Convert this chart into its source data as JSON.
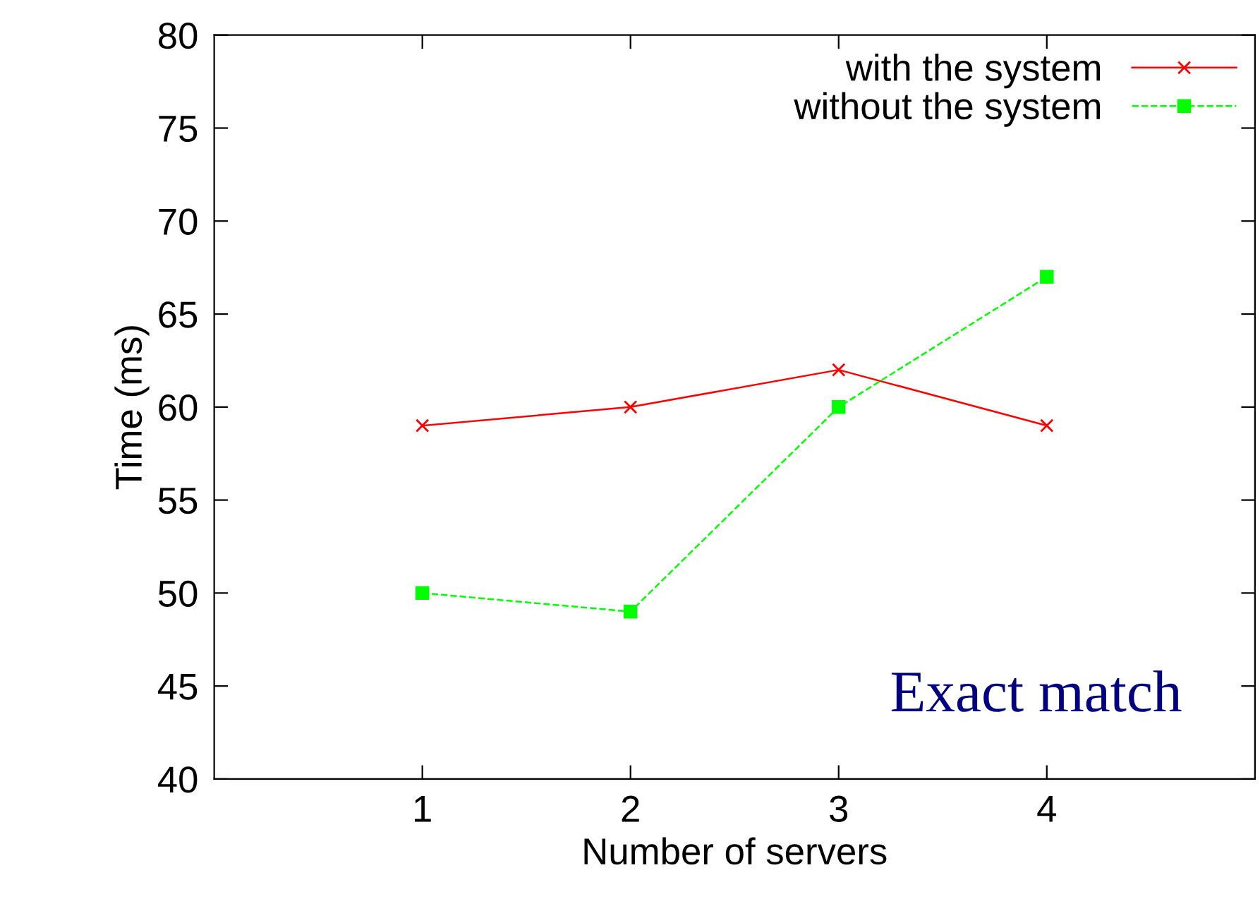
{
  "chart_data": {
    "type": "line",
    "xlabel": "Number of servers",
    "ylabel": "Time (ms)",
    "x": [
      1,
      2,
      3,
      4
    ],
    "xlim": [
      0,
      5
    ],
    "xticks": [
      1,
      2,
      3,
      4
    ],
    "ylim": [
      40,
      80
    ],
    "yticks": [
      40,
      45,
      50,
      55,
      60,
      65,
      70,
      75,
      80
    ],
    "series": [
      {
        "name": "with the system",
        "color": "#ff0000",
        "marker": "cross",
        "line_style": "solid",
        "values": [
          59,
          60,
          62,
          59
        ]
      },
      {
        "name": "without the system",
        "color": "#00ff00",
        "marker": "square",
        "line_style": "dashed",
        "values": [
          50,
          49,
          60,
          67
        ]
      }
    ],
    "legend": "top right",
    "grid": false,
    "annotations": [
      "Exact match"
    ]
  }
}
